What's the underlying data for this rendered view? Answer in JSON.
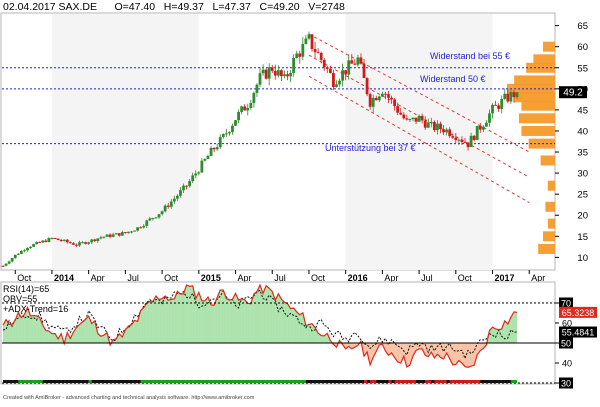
{
  "header": {
    "text": "02.04.2017 SAX.DE      O=47.40   H=49.37   L=47.37   C=49.20   V=2748"
  },
  "annotations": {
    "resistance_55": "Widerstand bei 55 €",
    "resistance_50": "Widerstand 50 €",
    "support_37": "Unterstützung bei 37 €"
  },
  "indicator_legend": [
    "RSI(14)=65",
    "OBV=55",
    "+ADX-Trend=16"
  ],
  "footer_credit": "Created with AmiBroker - advanced charting and technical analysis software. http://www.amibroker.com",
  "colors": {
    "candle_up": "#2e8b2e",
    "candle_down": "#d11a1a",
    "level_line": "#1f1fd6",
    "channel": "#e23a3a",
    "volume_profile": "#f59a2a",
    "rsi": "#e0281c",
    "obv": "#111111",
    "rsi_fill_up": "#49c24a",
    "rsi_fill_down": "#f07a3c",
    "price_badge": "#000000"
  },
  "chart_data": [
    {
      "type": "candlestick",
      "title": "SAX.DE",
      "x_ticks": [
        "Oct",
        "2014",
        "Apr",
        "Jul",
        "Oct",
        "2015",
        "Apr",
        "Jul",
        "Oct",
        "2016",
        "Apr",
        "Jul",
        "Oct",
        "2017",
        "Apr"
      ],
      "y_ticks": [
        10,
        15,
        20,
        25,
        30,
        35,
        40,
        45,
        50,
        55,
        60,
        65
      ],
      "ylim": [
        7,
        68
      ],
      "x_dates": [
        "2013-09",
        "2013-10",
        "2013-11",
        "2013-12",
        "2014-01",
        "2014-02",
        "2014-03",
        "2014-04",
        "2014-05",
        "2014-06",
        "2014-07",
        "2014-08",
        "2014-09",
        "2014-10",
        "2014-11",
        "2014-12",
        "2015-01",
        "2015-02",
        "2015-03",
        "2015-04",
        "2015-05",
        "2015-06",
        "2015-07",
        "2015-08",
        "2015-09",
        "2015-10",
        "2015-11",
        "2015-12",
        "2016-01",
        "2016-02",
        "2016-03",
        "2016-04",
        "2016-05",
        "2016-06",
        "2016-07",
        "2016-08",
        "2016-09",
        "2016-10",
        "2016-11",
        "2016-12",
        "2017-01",
        "2017-02",
        "2017-03"
      ],
      "close_path": [
        8.0,
        10.5,
        12.5,
        13.5,
        14.5,
        13.8,
        13.0,
        13.8,
        14.8,
        15.3,
        15.8,
        17.0,
        19.0,
        21.0,
        24.0,
        27.0,
        31.0,
        35.0,
        38.5,
        43.0,
        46.5,
        52.5,
        55.0,
        52.0,
        58.0,
        61.5,
        57.0,
        52.0,
        54.5,
        57.0,
        47.0,
        50.0,
        46.0,
        42.0,
        43.0,
        41.0,
        40.5,
        39.0,
        37.0,
        41.0,
        45.0,
        47.5,
        49.2
      ],
      "last_price": 49.2,
      "horizontal_levels": [
        {
          "value": 55,
          "label": "Widerstand bei 55 €"
        },
        {
          "value": 50,
          "label": "Widerstand 50 €"
        },
        {
          "value": 37,
          "label": "Unterstützung bei 37 €"
        }
      ],
      "channel": {
        "description": "descending channel (red dashed)",
        "upper": [
          {
            "date": "2015-10",
            "value": 63
          },
          {
            "date": "2017-04",
            "value": 35
          }
        ],
        "middle": [
          {
            "date": "2015-10",
            "value": 58
          },
          {
            "date": "2017-04",
            "value": 29
          }
        ],
        "lower": [
          {
            "date": "2015-10",
            "value": 53
          },
          {
            "date": "2017-04",
            "value": 23
          }
        ]
      },
      "volume_profile": {
        "description": "horizontal volume-at-price histogram on right edge",
        "price_levels": [
          12,
          15,
          18,
          22,
          27,
          33,
          37,
          40,
          43,
          46,
          48,
          50,
          52,
          55,
          57,
          60
        ],
        "relative_volume": [
          0.35,
          0.25,
          0.15,
          0.2,
          0.15,
          0.3,
          0.55,
          0.7,
          0.75,
          0.7,
          0.85,
          1.0,
          0.85,
          0.6,
          0.45,
          0.25
        ]
      }
    },
    {
      "type": "line",
      "series": [
        {
          "name": "RSI(14)",
          "last_value": 65.3238
        },
        {
          "name": "OBV",
          "last_value": 55.4841
        },
        {
          "name": "+ADX-Trend",
          "last_value": 16
        }
      ],
      "y_ticks": [
        30,
        40,
        50,
        60,
        70
      ],
      "ylim": [
        30,
        80
      ],
      "reference_levels": [
        70,
        50,
        30
      ],
      "rsi_path": [
        58,
        63,
        66,
        60,
        55,
        52,
        58,
        62,
        56,
        50,
        55,
        62,
        70,
        74,
        72,
        78,
        74,
        70,
        76,
        72,
        70,
        78,
        75,
        70,
        65,
        60,
        55,
        52,
        45,
        50,
        42,
        48,
        44,
        40,
        46,
        43,
        44,
        40,
        36,
        45,
        58,
        60,
        65.3
      ],
      "obv_path": [
        57,
        61,
        65,
        63,
        58,
        55,
        60,
        64,
        57,
        52,
        58,
        65,
        72,
        70,
        74,
        75,
        70,
        72,
        74,
        68,
        72,
        76,
        70,
        66,
        62,
        58,
        60,
        55,
        52,
        56,
        48,
        52,
        50,
        46,
        50,
        47,
        48,
        47,
        44,
        50,
        56,
        53,
        55.5
      ]
    }
  ]
}
